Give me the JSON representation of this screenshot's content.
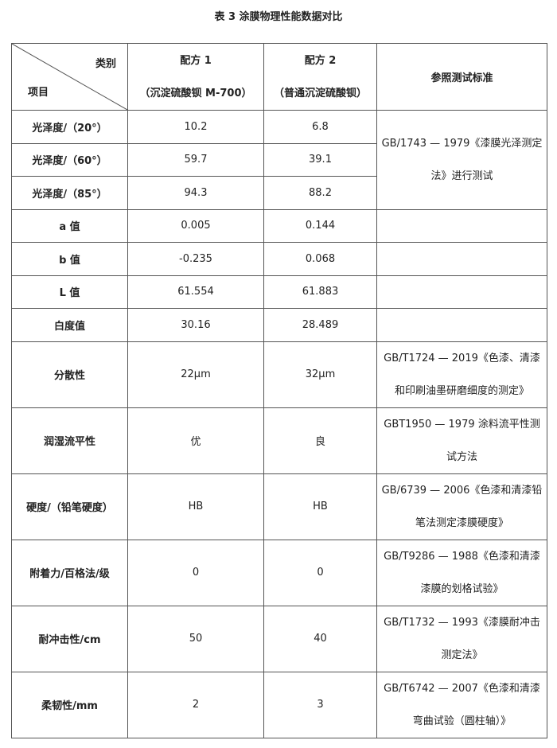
{
  "title": "表 3  涂膜物理性能数据对比",
  "header": {
    "category_label": "类别",
    "item_label": "项目",
    "col1": [
      "配方 1",
      "（沉淀硫酸钡 M-700）"
    ],
    "col2": [
      "配方 2",
      "（普通沉淀硫酸钡）"
    ],
    "col3": "参照测试标准"
  },
  "rows": [
    {
      "item": "光泽度/（20°）",
      "v1": "10.2",
      "v2": "6.8"
    },
    {
      "item": "光泽度/（60°）",
      "v1": "59.7",
      "v2": "39.1"
    },
    {
      "item": "光泽度/（85°）",
      "v1": "94.3",
      "v2": "88.2"
    },
    {
      "item": "a 值",
      "v1": "0.005",
      "v2": "0.144",
      "std": ""
    },
    {
      "item": "b 值",
      "v1": "-0.235",
      "v2": "0.068",
      "std": ""
    },
    {
      "item": "L 值",
      "v1": "61.554",
      "v2": "61.883",
      "std": ""
    },
    {
      "item": "白度值",
      "v1": "30.16",
      "v2": "28.489",
      "std": ""
    },
    {
      "item": "分散性",
      "v1": "22μm",
      "v2": "32μm",
      "std": [
        "GB/T1724 — 2019《色漆、清漆",
        "和印刷油墨研磨细度的测定》"
      ]
    },
    {
      "item": "润湿流平性",
      "v1": "优",
      "v2": "良",
      "std": [
        "GBT1950 — 1979 涂料流平性测",
        "试方法"
      ]
    },
    {
      "item": "硬度/（铅笔硬度）",
      "v1": "HB",
      "v2": "HB",
      "std": [
        "GB/6739 — 2006《色漆和清漆铅",
        "笔法测定漆膜硬度》"
      ]
    },
    {
      "item": "附着力/百格法/级",
      "v1": "0",
      "v2": "0",
      "std": [
        "GB/T9286 — 1988《色漆和清漆",
        "漆膜的划格试验》"
      ]
    },
    {
      "item": "耐冲击性/cm",
      "v1": "50",
      "v2": "40",
      "std": [
        "GB/T1732 — 1993《漆膜耐冲击",
        "测定法》"
      ]
    },
    {
      "item": "柔韧性/mm",
      "v1": "2",
      "v2": "3",
      "std": [
        "GB/T6742 — 2007《色漆和清漆",
        "弯曲试验（圆柱轴）》"
      ]
    }
  ],
  "gloss_standard": [
    "GB/1743 — 1979《漆膜光泽测定",
    "法》进行测试"
  ]
}
